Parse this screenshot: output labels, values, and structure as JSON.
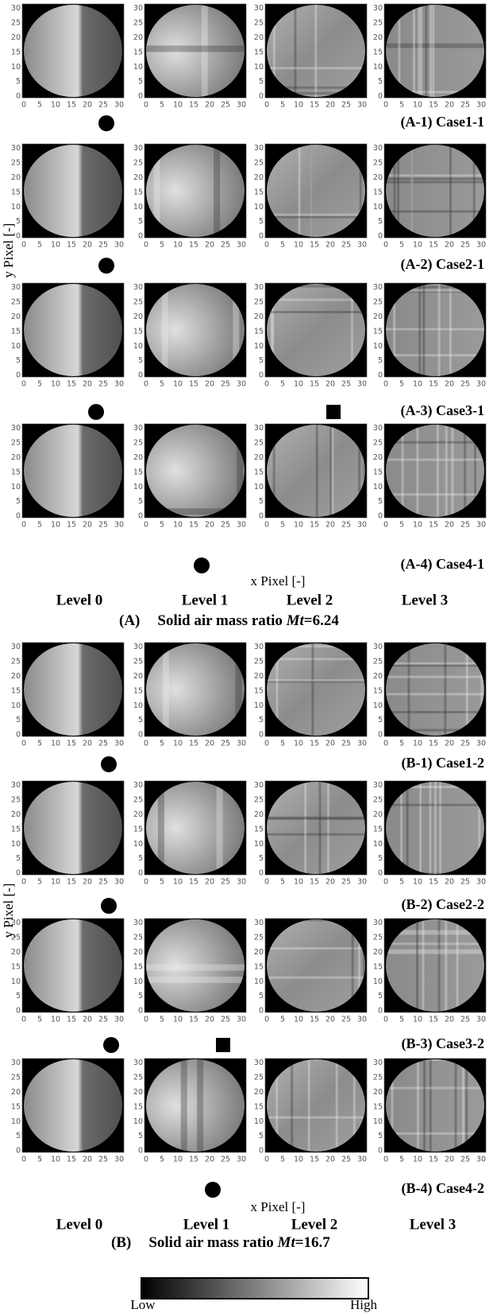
{
  "figure": {
    "tick_labels": [
      "0",
      "5",
      "10",
      "15",
      "20",
      "25",
      "30"
    ],
    "sections": [
      {
        "label": "(A)",
        "caption_text": "Solid air mass ratio ",
        "caption_var": "Mt",
        "caption_value": "=6.24",
        "x_axis_label": "x Pixel [-]",
        "y_axis_label": "y Pixel [-]",
        "levels": [
          "Level 0",
          "Level 1",
          "Level 2",
          "Level 3"
        ],
        "rows": [
          "(A-1) Case1-1",
          "(A-2) Case2-1",
          "(A-3) Case3-1",
          "(A-4)  Case4-1"
        ]
      },
      {
        "label": "(B)",
        "caption_text": "Solid air mass ratio ",
        "caption_var": "Mt",
        "caption_value": "=16.7",
        "x_axis_label": "x Pixel [-]",
        "y_axis_label": "y Pixel [-]",
        "levels": [
          "Level 0",
          "Level 1",
          "Level 2",
          "Level 3"
        ],
        "rows": [
          "(B-1) Case1-2",
          "(B-2) Case2-2",
          "(B-3) Case3-2",
          "(B-4)  Case4-2"
        ]
      }
    ],
    "colorbar": {
      "low": "Low",
      "high": "High"
    }
  }
}
